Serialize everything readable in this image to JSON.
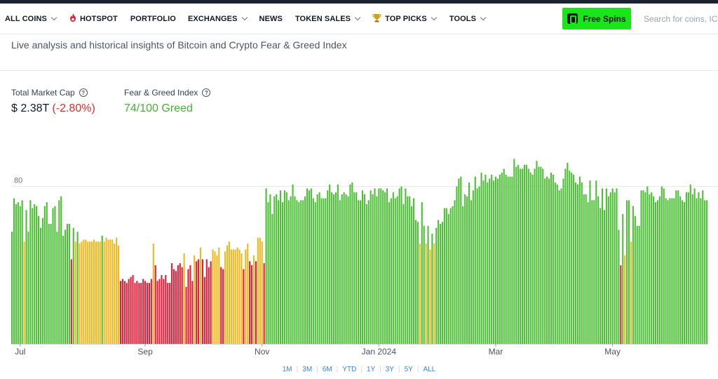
{
  "nav": {
    "items": [
      {
        "label": "ALL COINS",
        "dropdown": true,
        "icon": null
      },
      {
        "label": "HOTSPOT",
        "dropdown": false,
        "icon": "fire-icon"
      },
      {
        "label": "PORTFOLIO",
        "dropdown": false,
        "icon": null
      },
      {
        "label": "EXCHANGES",
        "dropdown": true,
        "icon": null
      },
      {
        "label": "NEWS",
        "dropdown": false,
        "icon": null
      },
      {
        "label": "TOKEN SALES",
        "dropdown": true,
        "icon": null
      },
      {
        "label": "TOP PICKS",
        "dropdown": true,
        "icon": "trophy-icon"
      },
      {
        "label": "TOOLS",
        "dropdown": true,
        "icon": null
      }
    ],
    "free_spins_label": "Free Spins",
    "search_placeholder": "Search for coins, ICOs, exchanges"
  },
  "subtitle": "Live analysis and historical insights of Bitcoin and Crypto Fear & Greed Index",
  "stats": {
    "market_cap_label": "Total Market Cap",
    "market_cap_value": "$ 2.38T",
    "market_cap_change": "(-2.80%)",
    "fg_label": "Fear & Greed Index",
    "fg_value": "74/100 Greed"
  },
  "colors": {
    "greed": "#4cc034",
    "neutral": "#f0b81c",
    "fear": "#e61b35",
    "loss": "#e02c2c",
    "accent_green": "#19e619"
  },
  "periods": [
    "1M",
    "3M",
    "6M",
    "YTD",
    "1Y",
    "3Y",
    "5Y",
    "ALL"
  ],
  "chart_data": {
    "type": "bar",
    "ylim": [
      0,
      100
    ],
    "y_ticks": [
      80
    ],
    "x_labels": [
      "Jul",
      "Sep",
      "Nov",
      "Jan 2024",
      "Mar",
      "May"
    ],
    "x_label_positions": [
      4,
      65,
      122,
      179,
      236,
      293
    ],
    "values": [
      57,
      74,
      71,
      72,
      70,
      73,
      52,
      68,
      57,
      73,
      69,
      71,
      70,
      65,
      59,
      64,
      70,
      72,
      61,
      61,
      69,
      70,
      57,
      73,
      75,
      55,
      58,
      61,
      61,
      43,
      59,
      52,
      57,
      51,
      52,
      53,
      53,
      52,
      52,
      52,
      53,
      52,
      52,
      52,
      55,
      52,
      54,
      53,
      53,
      53,
      51,
      54,
      50,
      32,
      33,
      32,
      31,
      33,
      34,
      35,
      31,
      32,
      31,
      31,
      33,
      32,
      31,
      31,
      33,
      51,
      40,
      32,
      33,
      35,
      33,
      35,
      31,
      31,
      41,
      38,
      37,
      40,
      41,
      39,
      46,
      29,
      38,
      40,
      32,
      45,
      42,
      43,
      49,
      43,
      34,
      43,
      39,
      42,
      48,
      47,
      45,
      49,
      39,
      38,
      47,
      50,
      52,
      48,
      48,
      48,
      49,
      48,
      46,
      38,
      48,
      51,
      42,
      40,
      45,
      42,
      54,
      54,
      52,
      41,
      79,
      72,
      76,
      66,
      75,
      76,
      73,
      78,
      72,
      78,
      77,
      73,
      75,
      81,
      75,
      73,
      72,
      73,
      73,
      75,
      79,
      78,
      79,
      74,
      72,
      76,
      77,
      74,
      74,
      74,
      78,
      81,
      77,
      76,
      77,
      81,
      73,
      76,
      77,
      76,
      75,
      81,
      82,
      77,
      77,
      73,
      73,
      78,
      76,
      71,
      73,
      78,
      76,
      79,
      75,
      79,
      79,
      78,
      77,
      79,
      72,
      74,
      77,
      74,
      75,
      79,
      80,
      71,
      79,
      75,
      75,
      70,
      74,
      63,
      62,
      51,
      72,
      60,
      51,
      60,
      48,
      56,
      51,
      59,
      63,
      61,
      62,
      69,
      69,
      66,
      69,
      70,
      73,
      80,
      84,
      85,
      70,
      76,
      75,
      82,
      73,
      78,
      85,
      79,
      80,
      87,
      83,
      86,
      82,
      84,
      86,
      83,
      85,
      84,
      86,
      87,
      89,
      86,
      85,
      85,
      85,
      94,
      90,
      91,
      89,
      89,
      91,
      91,
      89,
      87,
      86,
      89,
      93,
      90,
      90,
      89,
      84,
      85,
      84,
      87,
      86,
      82,
      81,
      78,
      79,
      84,
      89,
      92,
      88,
      87,
      86,
      82,
      81,
      85,
      82,
      76,
      76,
      72,
      83,
      73,
      73,
      83,
      75,
      69,
      79,
      68,
      79,
      75,
      77,
      79,
      77,
      79,
      58,
      40,
      66,
      45,
      73,
      73,
      52,
      70,
      65,
      60,
      60,
      78,
      78,
      77,
      80,
      76,
      77,
      75,
      72,
      73,
      75,
      80,
      79,
      74,
      73,
      74,
      74,
      74,
      78,
      78,
      75,
      73,
      72,
      77,
      77,
      81,
      76,
      79,
      74,
      77,
      74,
      78,
      73,
      73
    ]
  }
}
